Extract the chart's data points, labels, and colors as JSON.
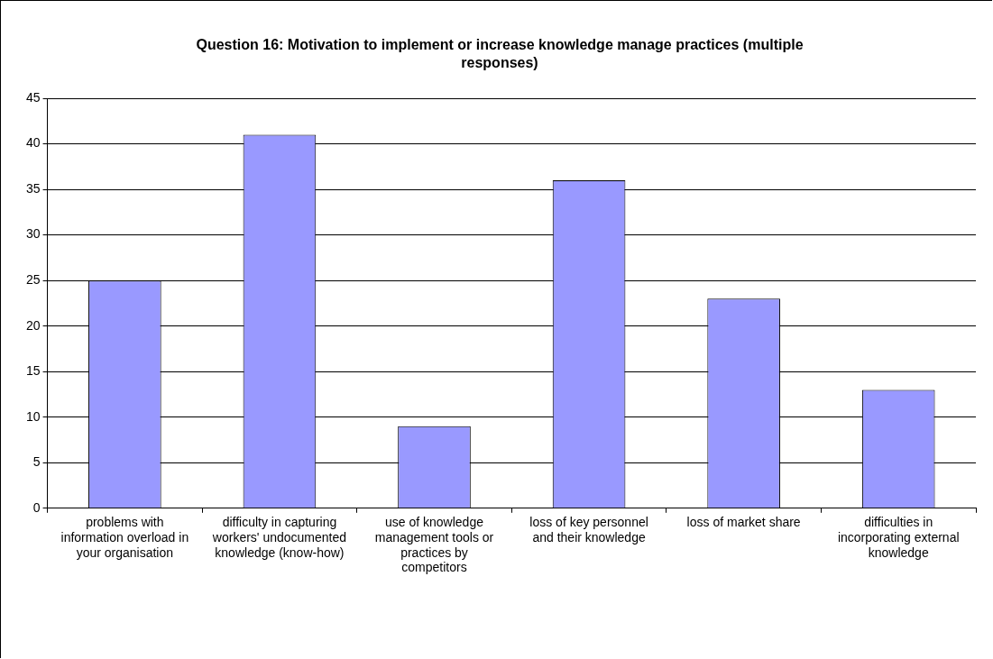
{
  "chart_data": {
    "type": "bar",
    "title": "Question 16: Motivation to implement or increase knowledge manage practices (multiple responses)",
    "categories": [
      "problems with information overload in your organisation",
      "difficulty in capturing workers' undocumented knowledge (know-how)",
      "use of knowledge management tools or practices by competitors",
      "loss of key personnel and their knowledge",
      "loss of market share",
      "difficulties in incorporating external knowledge"
    ],
    "values": [
      25,
      41,
      9,
      36,
      23,
      13
    ],
    "color": "#9999ff",
    "ylim": [
      0,
      45
    ],
    "yticks": [
      0,
      5,
      10,
      15,
      20,
      25,
      30,
      35,
      40,
      45
    ],
    "grid": "y",
    "legend": false
  }
}
